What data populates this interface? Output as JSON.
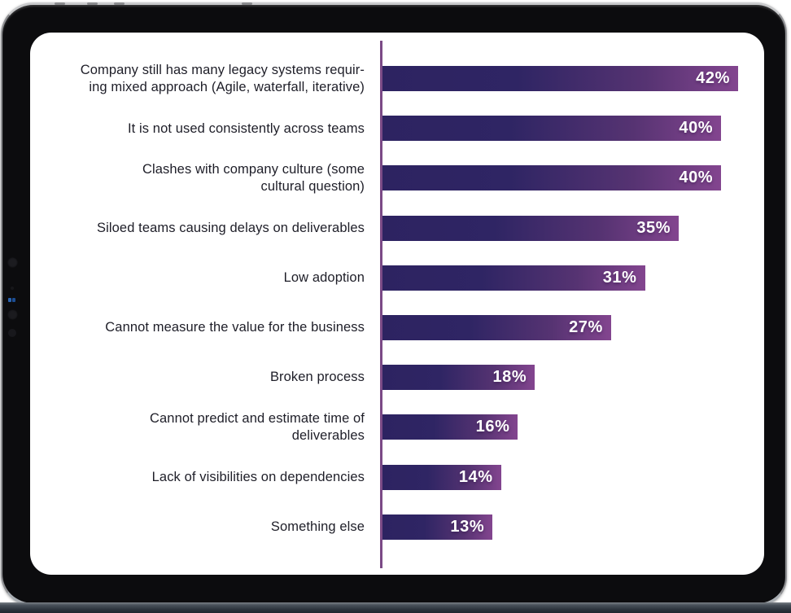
{
  "chart_data": {
    "type": "bar",
    "orientation": "horizontal",
    "title": "",
    "xlabel": "",
    "ylabel": "",
    "xlim": [
      0,
      42
    ],
    "grid": false,
    "legend": null,
    "axis_color": "#7b4a86",
    "bar_gradient_start": "#2d2361",
    "bar_gradient_end": "#83458f",
    "value_label_color": "#ffffff",
    "category_label_color": "#1e1e28",
    "categories": [
      "Company still has many legacy systems requiring mixed approach (Agile, waterfall, iterative)",
      "It is not used consistently across teams",
      "Clashes with company culture (some cultural question)",
      "Siloed teams causing delays on deliverables",
      "Low adoption",
      "Cannot measure the value for the business",
      "Broken process",
      "Cannot predict and estimate time of deliverables",
      "Lack of visibilities on dependencies",
      "Something else"
    ],
    "values": [
      42,
      40,
      40,
      35,
      31,
      27,
      18,
      16,
      14,
      13
    ],
    "items": [
      {
        "label": "Company still has many legacy systems requir-\ning mixed approach (Agile, waterfall, iterative)",
        "value": 42,
        "value_label": "42%"
      },
      {
        "label": "It is not used consistently across teams",
        "value": 40,
        "value_label": "40%"
      },
      {
        "label": "Clashes with company culture (some\ncultural question)",
        "value": 40,
        "value_label": "40%"
      },
      {
        "label": "Siloed teams causing delays on deliverables",
        "value": 35,
        "value_label": "35%"
      },
      {
        "label": "Low adoption",
        "value": 31,
        "value_label": "31%"
      },
      {
        "label": "Cannot measure the value for the business",
        "value": 27,
        "value_label": "27%"
      },
      {
        "label": "Broken process",
        "value": 18,
        "value_label": "18%"
      },
      {
        "label": "Cannot predict and estimate time of\ndeliverables",
        "value": 16,
        "value_label": "16%"
      },
      {
        "label": "Lack of visibilities on dependencies",
        "value": 14,
        "value_label": "14%"
      },
      {
        "label": "Something else",
        "value": 13,
        "value_label": "13%"
      }
    ]
  }
}
